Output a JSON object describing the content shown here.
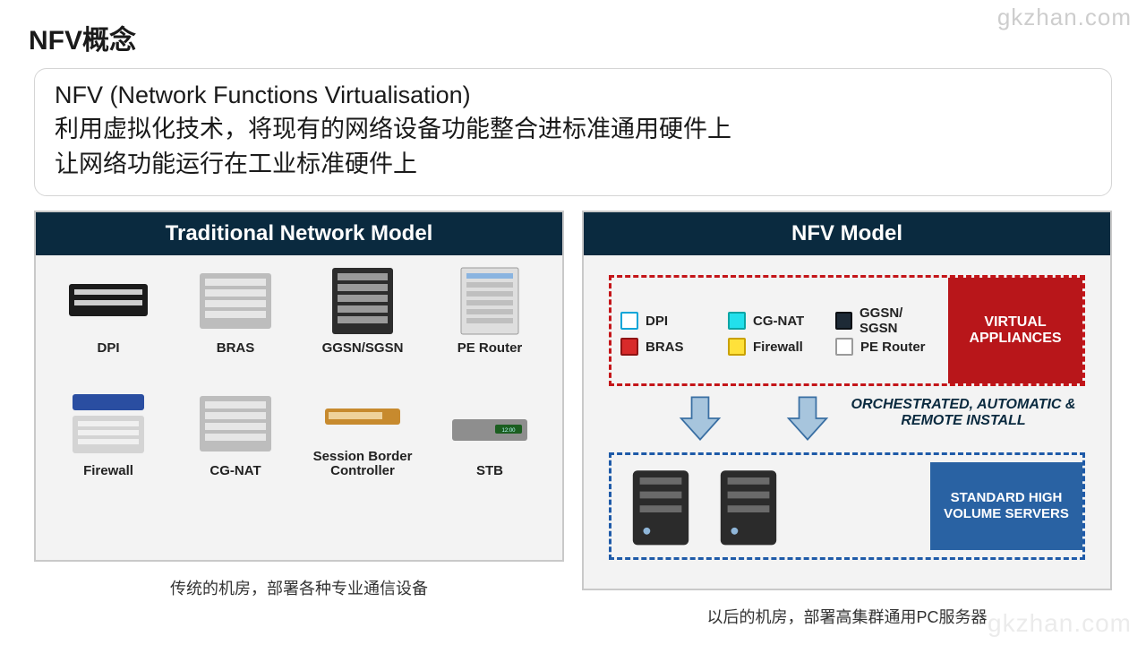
{
  "watermark": "gkzhan.com",
  "title": "NFV概念",
  "desc": {
    "heading": "NFV (Network Functions Virtualisation)",
    "line1": "利用虚拟化技术，将现有的网络设备功能整合进标准通用硬件上",
    "line2": "让网络功能运行在工业标准硬件上"
  },
  "colors": {
    "panel_header_bg": "#0a2a3f",
    "panel_border": "#c9c9c9",
    "panel_body_bg": "#f3f3f3",
    "va_dash": "#c41519",
    "va_fill": "#b8161a",
    "srv_dash": "#1e5aa8",
    "srv_fill": "#2962a3",
    "arrow_fill": "#a7c5dd",
    "arrow_stroke": "#3a6fa3"
  },
  "traditional": {
    "header": "Traditional Network Model",
    "caption": "传统的机房，部署各种专业通信设备",
    "devices": [
      {
        "label": "DPI",
        "shape": "rack-black"
      },
      {
        "label": "BRAS",
        "shape": "rack-grey"
      },
      {
        "label": "GGSN/SGSN",
        "shape": "rack-tall"
      },
      {
        "label": "PE Router",
        "shape": "rack-open"
      },
      {
        "label": "Firewall",
        "shape": "rack-blue"
      },
      {
        "label": "CG-NAT",
        "shape": "rack-grey"
      },
      {
        "label": "Session Border Controller",
        "shape": "box-gold"
      },
      {
        "label": "STB",
        "shape": "box-flat"
      }
    ]
  },
  "nfv": {
    "header": "NFV Model",
    "caption": "以后的机房，部署高集群通用PC服务器",
    "virtual_appliances_label": "VIRTUAL APPLIANCES",
    "orchestration_text": "ORCHESTRATED, AUTOMATIC & REMOTE INSTALL",
    "servers_label": "STANDARD HIGH VOLUME SERVERS",
    "items": [
      {
        "label": "DPI",
        "color": "#ffffff",
        "border": "#0aa5d8"
      },
      {
        "label": "CG-NAT",
        "color": "#22e0ec",
        "border": "#0aa5a5"
      },
      {
        "label": "GGSN/ SGSN",
        "color": "#1d2a36",
        "border": "#0a0f14"
      },
      {
        "label": "BRAS",
        "color": "#d82a2a",
        "border": "#8e1313"
      },
      {
        "label": "Firewall",
        "color": "#ffe13a",
        "border": "#c9a100"
      },
      {
        "label": "PE Router",
        "color": "#ffffff",
        "border": "#9a9a9a"
      }
    ]
  }
}
